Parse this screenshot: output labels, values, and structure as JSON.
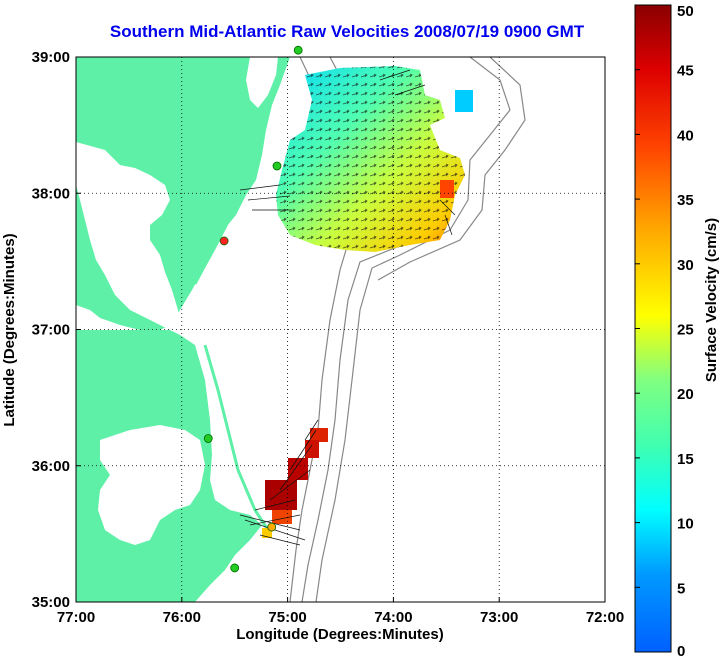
{
  "title": "Southern Mid-Atlantic Raw Velocities 2008/07/19 0900 GMT",
  "map": {
    "x_axis_label": "Longitude (Degrees:Minutes)",
    "y_axis_label": "Latitude (Degrees:Minutes)",
    "x_ticks": [
      "77:00",
      "76:00",
      "75:00",
      "74:00",
      "73:00",
      "72:00"
    ],
    "y_ticks": [
      "39:00",
      "38:00",
      "37:00",
      "36:00",
      "35:00"
    ],
    "lon_range": [
      -77,
      -72
    ],
    "lat_range": [
      35,
      39
    ],
    "land_color": "#5ff0a8",
    "ocean_color": "#ffffff",
    "grid": "dotted"
  },
  "colorbar": {
    "label": "Surface Velocity (cm/s)",
    "ticks": [
      "0",
      "5",
      "10",
      "15",
      "20",
      "25",
      "30",
      "35",
      "40",
      "45",
      "50"
    ],
    "range": [
      0,
      50
    ],
    "colormap": "jet"
  },
  "stations": [
    {
      "lon": -74.9,
      "lat": 39.05,
      "color": "#22cc22"
    },
    {
      "lon": -75.1,
      "lat": 38.2,
      "color": "#22cc22"
    },
    {
      "lon": -75.6,
      "lat": 37.65,
      "color": "#ff2222"
    },
    {
      "lon": -75.75,
      "lat": 36.2,
      "color": "#22cc22"
    },
    {
      "lon": -75.5,
      "lat": 35.25,
      "color": "#22cc22"
    },
    {
      "lon": -75.15,
      "lat": 35.55,
      "color": "#ffaa00"
    }
  ]
}
